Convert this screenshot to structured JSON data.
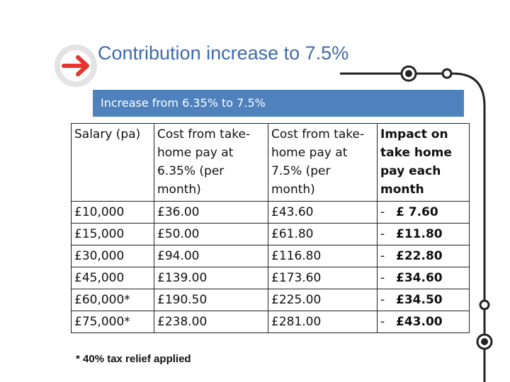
{
  "slide": {
    "title": "Contribution increase to 7.5%",
    "banner": "Increase from 6.35% to 7.5%",
    "footnote": "* 40% tax relief applied"
  },
  "table": {
    "headers": [
      "Salary (pa)",
      "Cost from take-home pay at 6.35% (per month)",
      "Cost from take-home pay at 7.5% (per month)",
      "Impact on take home pay each month"
    ],
    "rows": [
      {
        "salary": "£10,000",
        "cost_635": "£36.00",
        "cost_75": "£43.60",
        "impact_sign": "-",
        "impact": "£ 7.60"
      },
      {
        "salary": "£15,000",
        "cost_635": "£50.00",
        "cost_75": "£61.80",
        "impact_sign": "-",
        "impact": "£11.80"
      },
      {
        "salary": "£30,000",
        "cost_635": "£94.00",
        "cost_75": "£116.80",
        "impact_sign": "-",
        "impact": "£22.80"
      },
      {
        "salary": "£45,000",
        "cost_635": "£139.00",
        "cost_75": "£173.60",
        "impact_sign": "-",
        "impact": "£34.60"
      },
      {
        "salary": "£60,000*",
        "cost_635": "£190.50",
        "cost_75": "£225.00",
        "impact_sign": "-",
        "impact": "£34.50"
      },
      {
        "salary": "£75,000*",
        "cost_635": "£238.00",
        "cost_75": "£281.00",
        "impact_sign": "-",
        "impact": "£43.00"
      }
    ]
  },
  "colors": {
    "title": "#3f6aa7",
    "banner_bg": "#4f81bd",
    "arrow": "#e8342c",
    "rail": "#222222"
  },
  "icons": [
    "arrow-right-icon",
    "rail-node-icon"
  ]
}
